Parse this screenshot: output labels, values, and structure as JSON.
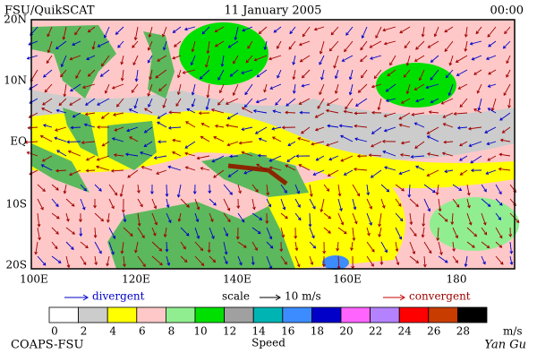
{
  "header": {
    "left": "FSU/QuikSCAT",
    "center": "11 January 2005",
    "right": "00:00"
  },
  "map": {
    "lat_labels": [
      "20N",
      "10N",
      "EQ",
      "10S",
      "20S"
    ],
    "lon_labels": [
      "100E",
      "120E",
      "140E",
      "160E",
      "180"
    ]
  },
  "legend": {
    "divergent": "divergent",
    "scale": "scale",
    "scale_value": "10 m/s",
    "convergent": "convergent"
  },
  "colorbar": {
    "ticks": [
      0,
      2,
      4,
      6,
      8,
      10,
      12,
      14,
      16,
      18,
      20,
      22,
      24,
      26,
      28
    ],
    "unit": "m/s",
    "label": "Speed",
    "colors": [
      "#ffffff",
      "#cccccc",
      "#ffff00",
      "#ffc8c8",
      "#90ee90",
      "#00e000",
      "#a0a0a0",
      "#00b4b4",
      "#3c8cff",
      "#0000c8",
      "#ff64ff",
      "#b482ff",
      "#ff0000",
      "#c83c00",
      "#000000"
    ]
  },
  "footer": {
    "left": "COAPS-FSU",
    "right": "Yan Gu"
  }
}
